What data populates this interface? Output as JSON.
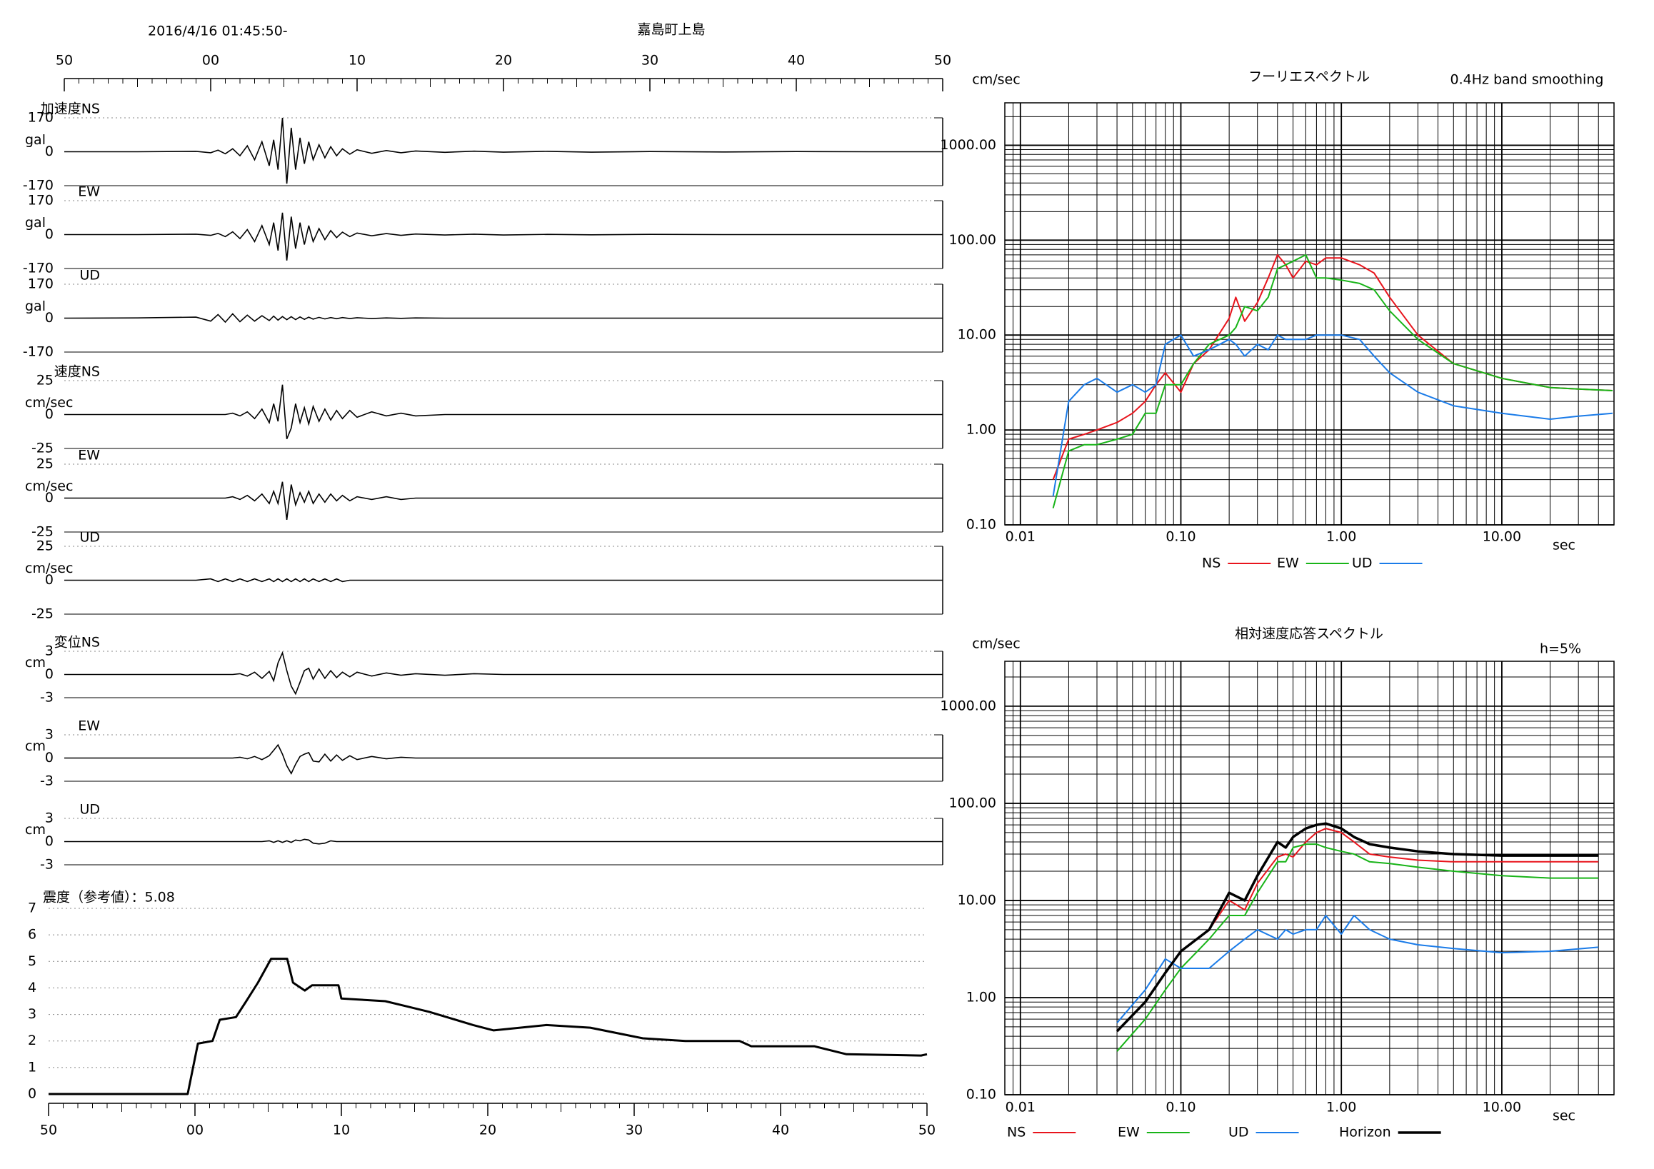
{
  "chart_data": [
    {
      "type": "waveform",
      "title": "嘉島町上島",
      "subtitle": "2016/4/16 01:45:50-",
      "color": "#000000",
      "xlim": [
        0,
        60
      ],
      "xticks": [
        {
          "value": 0,
          "label": "50"
        },
        {
          "value": 10,
          "label": "00"
        },
        {
          "value": 20,
          "label": "10"
        },
        {
          "value": 30,
          "label": "20"
        },
        {
          "value": 40,
          "label": "30"
        },
        {
          "value": 50,
          "label": "40"
        },
        {
          "value": 60,
          "label": "50"
        }
      ],
      "x": [
        0,
        5,
        9,
        10,
        10.5,
        11,
        11.5,
        12,
        12.5,
        13,
        13.5,
        14,
        14.3,
        14.6,
        14.9,
        15.2,
        15.5,
        15.8,
        16.1,
        16.4,
        16.7,
        17,
        17.4,
        17.8,
        18.2,
        18.6,
        19,
        19.5,
        20,
        21,
        22,
        23,
        24,
        26,
        28,
        30,
        33,
        36,
        40,
        45,
        50,
        55,
        60
      ],
      "series": [
        {
          "name": "加速度NS",
          "unit": "gal",
          "ylim": [
            -170,
            170
          ],
          "yticks": [
            170,
            0,
            -170
          ],
          "values": [
            0,
            0,
            2,
            -5,
            8,
            -10,
            15,
            -20,
            30,
            -40,
            50,
            -70,
            60,
            -90,
            170,
            -160,
            120,
            -90,
            70,
            -60,
            50,
            -40,
            35,
            -30,
            25,
            -20,
            15,
            -12,
            10,
            -8,
            6,
            -5,
            4,
            -3,
            3,
            -2,
            2,
            -2,
            1,
            -1,
            1,
            0,
            0
          ]
        },
        {
          "name": "EW",
          "unit": "gal",
          "ylim": [
            -170,
            170
          ],
          "yticks": [
            170,
            0,
            -170
          ],
          "values": [
            0,
            0,
            2,
            -4,
            6,
            -10,
            14,
            -20,
            25,
            -35,
            45,
            -50,
            60,
            -80,
            110,
            -130,
            90,
            -70,
            60,
            -50,
            45,
            -35,
            30,
            -25,
            20,
            -15,
            12,
            -10,
            8,
            -6,
            5,
            -4,
            3,
            -2,
            2,
            -2,
            1,
            -1,
            1,
            0,
            0,
            0,
            0
          ]
        },
        {
          "name": "UD",
          "unit": "gal",
          "ylim": [
            -170,
            170
          ],
          "yticks": [
            170,
            0,
            -170
          ],
          "values": [
            0,
            1,
            5,
            -15,
            18,
            -20,
            22,
            -18,
            15,
            -15,
            12,
            -12,
            10,
            -10,
            8,
            -8,
            7,
            -7,
            6,
            -6,
            5,
            -5,
            4,
            -4,
            3,
            -3,
            3,
            -2,
            2,
            -2,
            1,
            -1,
            1,
            0,
            0,
            0,
            0,
            0,
            0,
            0,
            0,
            0,
            0
          ]
        },
        {
          "name": "速度NS",
          "unit": "cm/sec",
          "ylim": [
            -25,
            25
          ],
          "yticks": [
            25,
            0,
            -25
          ],
          "values": [
            0,
            0,
            0,
            0,
            0,
            0,
            1,
            -1,
            2,
            -3,
            4,
            -6,
            8,
            -5,
            22,
            -18,
            -10,
            8,
            -6,
            5,
            -7,
            6,
            -5,
            4,
            -4,
            3,
            -3,
            3,
            -2,
            2,
            -1,
            1,
            -1,
            0,
            0,
            0,
            0,
            0,
            0,
            0,
            0,
            0,
            0
          ]
        },
        {
          "name": "EW",
          "unit": "cm/sec",
          "ylim": [
            -25,
            25
          ],
          "yticks": [
            25,
            0,
            -25
          ],
          "values": [
            0,
            0,
            0,
            0,
            0,
            0,
            1,
            -1,
            2,
            -2,
            3,
            -4,
            5,
            -4,
            12,
            -16,
            10,
            -5,
            4,
            -3,
            5,
            -4,
            3,
            -3,
            3,
            -2,
            2,
            -2,
            1,
            -1,
            1,
            -1,
            0,
            0,
            0,
            0,
            0,
            0,
            0,
            0,
            0,
            0,
            0
          ]
        },
        {
          "name": "UD",
          "unit": "cm/sec",
          "ylim": [
            -25,
            25
          ],
          "yticks": [
            25,
            0,
            -25
          ],
          "values": [
            0,
            0,
            0,
            1,
            -1,
            1,
            -1,
            1,
            -1,
            1,
            -1,
            1,
            -1,
            1,
            -1,
            1,
            -1,
            1,
            -1,
            1,
            -1,
            1,
            -1,
            1,
            -1,
            1,
            -1,
            0,
            0,
            0,
            0,
            0,
            0,
            0,
            0,
            0,
            0,
            0,
            0,
            0,
            0,
            0,
            0
          ]
        },
        {
          "name": "変位NS",
          "unit": "cm",
          "ylim": [
            -3,
            3
          ],
          "yticks": [
            3,
            0,
            -3
          ],
          "values": [
            0,
            0,
            0,
            0,
            0,
            0,
            0,
            0.1,
            -0.2,
            0.3,
            -0.5,
            0.4,
            -0.8,
            1.5,
            2.8,
            0.5,
            -1.5,
            -2.5,
            -1,
            0.5,
            0.8,
            -0.6,
            0.7,
            -0.5,
            0.5,
            -0.4,
            0.3,
            -0.3,
            0.3,
            -0.2,
            0.2,
            -0.1,
            0.1,
            -0.1,
            0.1,
            0,
            0,
            0,
            0,
            0,
            0,
            0,
            0
          ]
        },
        {
          "name": "EW",
          "unit": "cm",
          "ylim": [
            -3,
            3
          ],
          "yticks": [
            3,
            0,
            -3
          ],
          "values": [
            0,
            0,
            0,
            0,
            0,
            0,
            0,
            0.1,
            -0.1,
            0.2,
            -0.2,
            0.3,
            1.0,
            1.7,
            0.5,
            -1.0,
            -2.0,
            -0.8,
            0.2,
            0.5,
            0.7,
            -0.4,
            -0.5,
            0.5,
            -0.4,
            0.4,
            -0.3,
            0.3,
            -0.2,
            0.2,
            -0.1,
            0.1,
            0,
            0,
            0,
            0,
            0,
            0,
            0,
            0,
            0,
            0,
            0
          ]
        },
        {
          "name": "UD",
          "unit": "cm",
          "ylim": [
            -3,
            3
          ],
          "yticks": [
            3,
            0,
            -3
          ],
          "values": [
            0,
            0,
            0,
            0,
            0,
            0,
            0,
            0,
            0,
            0,
            0,
            0.1,
            -0.1,
            0.1,
            -0.1,
            0.1,
            -0.1,
            0.2,
            0.1,
            0.3,
            0.2,
            -0.2,
            -0.3,
            -0.2,
            0.1,
            0,
            0,
            0,
            0,
            0,
            0,
            0,
            0,
            0,
            0,
            0,
            0,
            0,
            0,
            0,
            0,
            0,
            0
          ]
        }
      ]
    },
    {
      "type": "line",
      "title": "震度（参考値）：5.08",
      "color": "#000000",
      "grid": true,
      "xlim": [
        0,
        60
      ],
      "xticks": [
        {
          "value": 0,
          "label": "50"
        },
        {
          "value": 10,
          "label": "00"
        },
        {
          "value": 20,
          "label": "10"
        },
        {
          "value": 30,
          "label": "20"
        },
        {
          "value": 40,
          "label": "30"
        },
        {
          "value": 50,
          "label": "40"
        },
        {
          "value": 60,
          "label": "50"
        }
      ],
      "ylim": [
        0,
        7
      ],
      "yticks": [
        0,
        1,
        2,
        3,
        4,
        5,
        6,
        7
      ],
      "x": [
        0,
        9.5,
        10.2,
        11.2,
        11.7,
        12.8,
        13.5,
        14.3,
        15.2,
        16.3,
        16.7,
        17.5,
        18,
        19.8,
        20,
        23,
        24.5,
        26,
        29,
        30.4,
        34,
        37,
        40.6,
        43.5,
        47.2,
        48,
        52.3,
        54.5,
        59.6,
        60
      ],
      "values": [
        0,
        0,
        1.9,
        2,
        2.8,
        2.9,
        3.5,
        4.2,
        5.1,
        5.1,
        4.2,
        3.9,
        4.1,
        4.1,
        3.6,
        3.5,
        3.3,
        3.1,
        2.6,
        2.4,
        2.6,
        2.5,
        2.1,
        2.0,
        2.0,
        1.8,
        1.8,
        1.5,
        1.45,
        1.5
      ]
    },
    {
      "type": "line",
      "title": "フーリエスペクトル",
      "subtitle": "0.4Hz band smoothing",
      "ylabel": "cm/sec",
      "xlabel": "sec",
      "xscale": "log",
      "yscale": "log",
      "grid": true,
      "legend": "bottom",
      "xlim": [
        0.008,
        50
      ],
      "xticks": [
        0.01,
        {
          "value": 0.1,
          "label": "0.10"
        },
        {
          "value": 1,
          "label": "1.00"
        },
        {
          "value": 10,
          "label": "10.00"
        }
      ],
      "ylim": [
        0.1,
        2800
      ],
      "yticks": [
        {
          "value": 0.1,
          "label": "0.10"
        },
        {
          "value": 1,
          "label": "1.00"
        },
        {
          "value": 10,
          "label": "10.00"
        },
        {
          "value": 100,
          "label": "100.00"
        },
        {
          "value": 1000,
          "label": "1000.00"
        }
      ],
      "x": [
        0.016,
        0.02,
        0.025,
        0.03,
        0.04,
        0.05,
        0.06,
        0.07,
        0.08,
        0.1,
        0.12,
        0.15,
        0.2,
        0.22,
        0.25,
        0.3,
        0.35,
        0.4,
        0.45,
        0.5,
        0.6,
        0.7,
        0.8,
        1.0,
        1.3,
        1.6,
        2,
        3,
        5,
        10,
        20,
        30,
        49
      ],
      "series": [
        {
          "name": "NS",
          "color": "#e8141c",
          "values": [
            0.3,
            0.8,
            0.9,
            1.0,
            1.2,
            1.5,
            2,
            3,
            4,
            2.5,
            5,
            7,
            15,
            25,
            14,
            22,
            40,
            70,
            55,
            40,
            60,
            55,
            65,
            65,
            55,
            45,
            25,
            10,
            5,
            3.5,
            2.8,
            2.7,
            2.6
          ]
        },
        {
          "name": "EW",
          "color": "#18b418",
          "values": [
            0.15,
            0.6,
            0.7,
            0.7,
            0.8,
            0.9,
            1.5,
            1.5,
            3,
            3,
            5,
            8,
            10,
            12,
            20,
            18,
            25,
            50,
            55,
            60,
            70,
            40,
            40,
            38,
            35,
            30,
            18,
            9,
            5,
            3.5,
            2.8,
            2.7,
            2.6
          ]
        },
        {
          "name": "UD",
          "color": "#1a7be8",
          "values": [
            0.2,
            2,
            3,
            3.5,
            2.5,
            3,
            2.5,
            3,
            8,
            10,
            6,
            7,
            9,
            8,
            6,
            8,
            7,
            10,
            9,
            9,
            9,
            10,
            10,
            10,
            9,
            6,
            4,
            2.5,
            1.8,
            1.5,
            1.3,
            1.4,
            1.5
          ]
        }
      ]
    },
    {
      "type": "line",
      "title": "相対速度応答スペクトル",
      "annotation": "h=5%",
      "ylabel": "cm/sec",
      "xlabel": "sec",
      "xscale": "log",
      "yscale": "log",
      "grid": true,
      "legend": "bottom",
      "xlim": [
        0.008,
        50
      ],
      "xticks": [
        0.01,
        {
          "value": 0.1,
          "label": "0.10"
        },
        {
          "value": 1,
          "label": "1.00"
        },
        {
          "value": 10,
          "label": "10.00"
        }
      ],
      "ylim": [
        0.1,
        2900
      ],
      "yticks": [
        {
          "value": 0.1,
          "label": "0.10"
        },
        {
          "value": 1,
          "label": "1.00"
        },
        {
          "value": 10,
          "label": "10.00"
        },
        {
          "value": 100,
          "label": "100.00"
        },
        {
          "value": 1000,
          "label": "1000.00"
        }
      ],
      "x": [
        0.04,
        0.06,
        0.08,
        0.1,
        0.15,
        0.2,
        0.25,
        0.3,
        0.4,
        0.45,
        0.5,
        0.6,
        0.7,
        0.8,
        1.0,
        1.2,
        1.5,
        2,
        3,
        5,
        10,
        20,
        40
      ],
      "series": [
        {
          "name": "NS",
          "color": "#e8141c",
          "values": [
            0.45,
            0.9,
            1.8,
            3,
            5,
            10,
            8,
            15,
            28,
            30,
            28,
            40,
            50,
            55,
            50,
            40,
            30,
            28,
            26,
            25,
            25,
            25,
            25
          ]
        },
        {
          "name": "EW",
          "color": "#18b418",
          "values": [
            0.28,
            0.6,
            1.2,
            2,
            4,
            7,
            7,
            12,
            25,
            25,
            35,
            38,
            38,
            35,
            32,
            30,
            25,
            24,
            22,
            20,
            18,
            17,
            17
          ]
        },
        {
          "name": "UD",
          "color": "#1a7be8",
          "values": [
            0.55,
            1.2,
            2.5,
            2,
            2,
            3,
            4,
            5,
            4,
            5,
            4.5,
            5,
            5,
            7,
            4.5,
            7,
            5,
            4,
            3.5,
            3.2,
            2.9,
            3,
            3.3
          ]
        },
        {
          "name": "Horizon",
          "color": "#000000",
          "values": [
            0.45,
            0.9,
            1.8,
            3,
            5,
            12,
            10,
            18,
            40,
            35,
            45,
            55,
            60,
            62,
            55,
            45,
            38,
            35,
            32,
            30,
            29,
            29,
            29
          ]
        }
      ]
    }
  ]
}
